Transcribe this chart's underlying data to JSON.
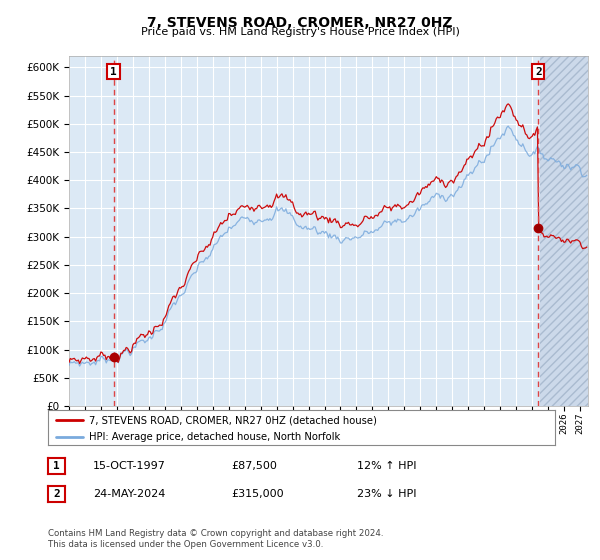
{
  "title": "7, STEVENS ROAD, CROMER, NR27 0HZ",
  "subtitle": "Price paid vs. HM Land Registry's House Price Index (HPI)",
  "legend_line1": "7, STEVENS ROAD, CROMER, NR27 0HZ (detached house)",
  "legend_line2": "HPI: Average price, detached house, North Norfolk",
  "annotation1_label": "1",
  "annotation1_date": "15-OCT-1997",
  "annotation1_price": "£87,500",
  "annotation1_hpi": "12% ↑ HPI",
  "annotation2_label": "2",
  "annotation2_date": "24-MAY-2024",
  "annotation2_price": "£315,000",
  "annotation2_hpi": "23% ↓ HPI",
  "footer": "Contains HM Land Registry data © Crown copyright and database right 2024.\nThis data is licensed under the Open Government Licence v3.0.",
  "ylim": [
    0,
    620000
  ],
  "yticks": [
    0,
    50000,
    100000,
    150000,
    200000,
    250000,
    300000,
    350000,
    400000,
    450000,
    500000,
    550000,
    600000
  ],
  "xlim_start": 1995.0,
  "xlim_end": 2027.5,
  "sale1_x": 1997.79,
  "sale1_y": 87500,
  "sale2_x": 2024.39,
  "sale2_y": 315000,
  "line_color_red": "#cc0000",
  "line_color_blue": "#7aaadd",
  "dashed_color": "#dd4444",
  "marker_color": "#aa0000",
  "bg_color": "#dce9f5",
  "grid_color": "#ffffff",
  "box_color": "#cc0000",
  "future_start": 2024.5
}
